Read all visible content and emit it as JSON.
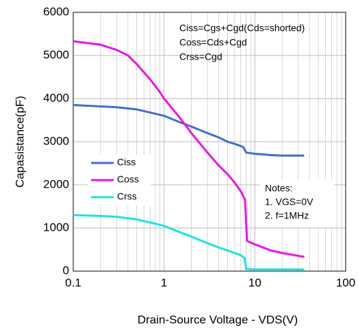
{
  "chart_data": {
    "type": "line",
    "xlabel": "Drain-Source Voltage - VDS(V)",
    "ylabel": "Capasistance(pF)",
    "xscale": "log",
    "xlim": [
      0.1,
      100
    ],
    "xticks": [
      0.1,
      1,
      10,
      100
    ],
    "xminorticks": [
      0.2,
      0.3,
      0.4,
      0.5,
      0.6,
      0.7,
      0.8,
      0.9,
      2,
      3,
      4,
      5,
      6,
      7,
      8,
      9,
      20,
      30,
      40,
      50,
      60,
      70,
      80,
      90
    ],
    "ylim": [
      0,
      6000
    ],
    "yticks": [
      0,
      1000,
      2000,
      3000,
      4000,
      5000,
      6000
    ],
    "grid": true,
    "annotations": [
      "Ciss=Cgs+Cgd(Cds=shorted)",
      "Coss=Cds+Cgd",
      "Crss=Cgd"
    ],
    "notes": [
      "Notes:",
      "1. VGS=0V",
      "2. f=1MHz"
    ],
    "series": [
      {
        "name": "Ciss",
        "color": "#3a6fd8",
        "x": [
          0.1,
          0.3,
          0.5,
          0.8,
          1,
          1.5,
          2,
          3,
          4,
          5,
          6,
          7,
          7.5,
          8,
          10,
          15,
          20,
          35
        ],
        "values": [
          3850,
          3800,
          3750,
          3650,
          3600,
          3450,
          3350,
          3200,
          3100,
          3000,
          2950,
          2900,
          2870,
          2750,
          2720,
          2690,
          2680,
          2680
        ]
      },
      {
        "name": "Coss",
        "color": "#ee10ee",
        "x": [
          0.1,
          0.2,
          0.3,
          0.4,
          0.5,
          0.7,
          0.9,
          1,
          1.5,
          2,
          3,
          4,
          5,
          6,
          7,
          7.8,
          8.2,
          10,
          15,
          20,
          35
        ],
        "values": [
          5330,
          5250,
          5130,
          5000,
          4800,
          4450,
          4150,
          4000,
          3550,
          3200,
          2750,
          2450,
          2250,
          2050,
          1850,
          1650,
          700,
          620,
          480,
          420,
          330
        ]
      },
      {
        "name": "Crss",
        "color": "#14e6e6",
        "x": [
          0.1,
          0.2,
          0.3,
          0.5,
          0.8,
          1,
          1.5,
          2,
          3,
          4,
          5,
          6,
          7,
          7.7,
          8,
          10,
          20,
          35
        ],
        "values": [
          1300,
          1280,
          1260,
          1200,
          1100,
          1050,
          900,
          800,
          650,
          550,
          480,
          420,
          370,
          300,
          50,
          40,
          40,
          40
        ]
      }
    ]
  }
}
